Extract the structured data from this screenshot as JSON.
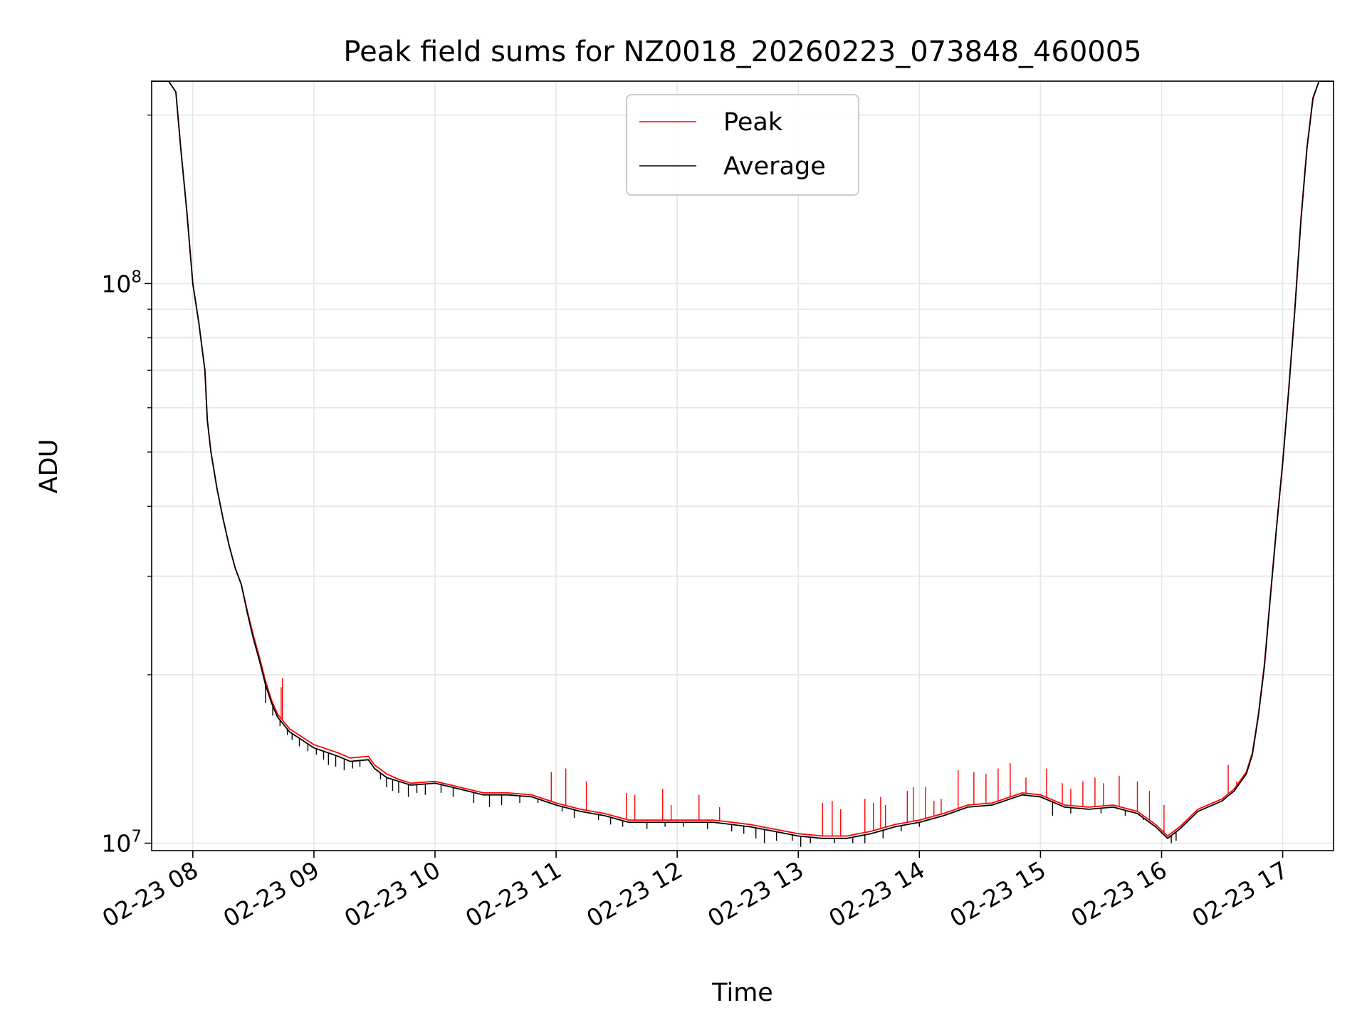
{
  "chart_data": {
    "type": "line",
    "title": "Peak field sums for NZ0018_20260223_073848_460005",
    "xlabel": "Time",
    "ylabel": "ADU",
    "yscale": "log",
    "ylim": [
      9700000,
      230000000
    ],
    "xlim": [
      7.66,
      17.42
    ],
    "x_units": "hours (02-23 HH)",
    "grid": true,
    "grid_color": "#e6e6e6",
    "legend_position": "upper center",
    "x_ticks": [
      {
        "value": 8,
        "label": "02-23 08"
      },
      {
        "value": 9,
        "label": "02-23 09"
      },
      {
        "value": 10,
        "label": "02-23 10"
      },
      {
        "value": 11,
        "label": "02-23 11"
      },
      {
        "value": 12,
        "label": "02-23 12"
      },
      {
        "value": 13,
        "label": "02-23 13"
      },
      {
        "value": 14,
        "label": "02-23 14"
      },
      {
        "value": 15,
        "label": "02-23 15"
      },
      {
        "value": 16,
        "label": "02-23 16"
      },
      {
        "value": 17,
        "label": "02-23 17"
      }
    ],
    "y_ticks_major": [
      {
        "value": 10000000,
        "base": "10",
        "exp": "7"
      },
      {
        "value": 100000000,
        "base": "10",
        "exp": "8"
      }
    ],
    "y_ticks_minor": [
      20000000,
      30000000,
      40000000,
      50000000,
      60000000,
      70000000,
      80000000,
      90000000,
      200000000
    ],
    "series": [
      {
        "name": "Peak",
        "color": "#ff0000",
        "x": [
          7.66,
          7.8,
          7.86,
          7.9,
          7.95,
          8.0,
          8.05,
          8.1,
          8.12,
          8.15,
          8.2,
          8.25,
          8.3,
          8.35,
          8.4,
          8.45,
          8.5,
          8.55,
          8.6,
          8.65,
          8.7,
          8.8,
          8.9,
          9.0,
          9.2,
          9.3,
          9.45,
          9.5,
          9.6,
          9.7,
          9.8,
          10.0,
          10.2,
          10.4,
          10.6,
          10.8,
          11.0,
          11.2,
          11.4,
          11.6,
          11.8,
          12.0,
          12.3,
          12.6,
          12.8,
          13.0,
          13.2,
          13.4,
          13.6,
          13.8,
          14.0,
          14.2,
          14.4,
          14.6,
          14.85,
          15.0,
          15.2,
          15.4,
          15.6,
          15.8,
          15.95,
          16.05,
          16.15,
          16.3,
          16.5,
          16.6,
          16.7,
          16.75,
          16.8,
          16.85,
          16.9,
          16.95,
          17.0,
          17.05,
          17.1,
          17.15,
          17.2,
          17.25,
          17.3,
          17.42
        ],
        "y": [
          230000000,
          230000000,
          220000000,
          175000000,
          135000000,
          100000000,
          85000000,
          70000000,
          57000000,
          50000000,
          43000000,
          38000000,
          34000000,
          31000000,
          29000000,
          26000000,
          23500000,
          21500000,
          19500000,
          18000000,
          17000000,
          16000000,
          15500000,
          15000000,
          14500000,
          14200000,
          14300000,
          13800000,
          13300000,
          13000000,
          12800000,
          12900000,
          12600000,
          12300000,
          12300000,
          12200000,
          11800000,
          11500000,
          11300000,
          11000000,
          11000000,
          11000000,
          11000000,
          10800000,
          10600000,
          10400000,
          10300000,
          10300000,
          10500000,
          10800000,
          11000000,
          11300000,
          11700000,
          11800000,
          12300000,
          12200000,
          11700000,
          11600000,
          11700000,
          11400000,
          10800000,
          10300000,
          10700000,
          11500000,
          12000000,
          12500000,
          13400000,
          14500000,
          17000000,
          21000000,
          28000000,
          37000000,
          48000000,
          65000000,
          90000000,
          130000000,
          175000000,
          215000000,
          230000000,
          230000000
        ],
        "spikes": [
          [
            10.96,
            13400000
          ],
          [
            11.08,
            13600000
          ],
          [
            11.25,
            12900000
          ],
          [
            11.58,
            12300000
          ],
          [
            11.65,
            12200000
          ],
          [
            11.88,
            12500000
          ],
          [
            11.95,
            11700000
          ],
          [
            12.18,
            12200000
          ],
          [
            12.35,
            11600000
          ],
          [
            13.2,
            11800000
          ],
          [
            13.28,
            11900000
          ],
          [
            13.35,
            11500000
          ],
          [
            13.55,
            12000000
          ],
          [
            13.62,
            11800000
          ],
          [
            13.68,
            12100000
          ],
          [
            13.72,
            11700000
          ],
          [
            13.9,
            12400000
          ],
          [
            13.95,
            12600000
          ],
          [
            14.05,
            12600000
          ],
          [
            14.12,
            11900000
          ],
          [
            14.18,
            12000000
          ],
          [
            14.32,
            13500000
          ],
          [
            14.45,
            13400000
          ],
          [
            14.55,
            13300000
          ],
          [
            14.65,
            13600000
          ],
          [
            14.75,
            13900000
          ],
          [
            14.88,
            13100000
          ],
          [
            15.05,
            13600000
          ],
          [
            15.18,
            12800000
          ],
          [
            15.25,
            12500000
          ],
          [
            15.35,
            12900000
          ],
          [
            15.45,
            13100000
          ],
          [
            15.52,
            12800000
          ],
          [
            15.65,
            13200000
          ],
          [
            15.8,
            12900000
          ],
          [
            15.9,
            12400000
          ],
          [
            16.02,
            11700000
          ],
          [
            16.55,
            13800000
          ],
          [
            16.62,
            12900000
          ],
          [
            8.74,
            19700000
          ],
          [
            8.52,
            22300000
          ],
          [
            8.73,
            19000000
          ]
        ]
      },
      {
        "name": "Average",
        "color": "#000000",
        "x": [
          7.66,
          7.8,
          7.86,
          7.9,
          7.95,
          8.0,
          8.05,
          8.1,
          8.12,
          8.15,
          8.2,
          8.25,
          8.3,
          8.35,
          8.4,
          8.45,
          8.5,
          8.55,
          8.6,
          8.65,
          8.7,
          8.8,
          8.9,
          9.0,
          9.2,
          9.3,
          9.45,
          9.5,
          9.6,
          9.7,
          9.8,
          10.0,
          10.2,
          10.4,
          10.6,
          10.8,
          11.0,
          11.2,
          11.4,
          11.6,
          11.8,
          12.0,
          12.3,
          12.6,
          12.8,
          13.0,
          13.2,
          13.4,
          13.6,
          13.8,
          14.0,
          14.2,
          14.4,
          14.6,
          14.85,
          15.0,
          15.2,
          15.4,
          15.6,
          15.8,
          15.95,
          16.05,
          16.15,
          16.3,
          16.5,
          16.6,
          16.7,
          16.75,
          16.8,
          16.85,
          16.9,
          16.95,
          17.0,
          17.05,
          17.1,
          17.15,
          17.2,
          17.25,
          17.3,
          17.42
        ],
        "y": [
          230000000,
          230000000,
          220000000,
          175000000,
          135000000,
          100000000,
          85000000,
          70000000,
          57000000,
          50000000,
          43000000,
          38000000,
          34000000,
          31000000,
          29000000,
          25800000,
          23200000,
          21200000,
          19200000,
          17800000,
          16800000,
          15800000,
          15300000,
          14800000,
          14300000,
          14000000,
          14100000,
          13600000,
          13100000,
          12900000,
          12700000,
          12800000,
          12500000,
          12200000,
          12200000,
          12100000,
          11700000,
          11400000,
          11200000,
          10900000,
          10900000,
          10900000,
          10900000,
          10700000,
          10500000,
          10300000,
          10200000,
          10200000,
          10400000,
          10700000,
          10900000,
          11200000,
          11600000,
          11700000,
          12200000,
          12100000,
          11600000,
          11500000,
          11600000,
          11300000,
          10700000,
          10200000,
          10600000,
          11400000,
          11900000,
          12400000,
          13300000,
          14400000,
          16900000,
          20800000,
          27800000,
          36800000,
          47800000,
          64500000,
          89500000,
          129000000,
          174000000,
          214000000,
          230000000,
          230000000
        ],
        "dips": [
          [
            8.6,
            17800000
          ],
          [
            8.66,
            16900000
          ],
          [
            8.72,
            16200000
          ],
          [
            8.78,
            15600000
          ],
          [
            8.82,
            15300000
          ],
          [
            8.88,
            14900000
          ],
          [
            8.95,
            14600000
          ],
          [
            9.02,
            14400000
          ],
          [
            9.08,
            14100000
          ],
          [
            9.12,
            13800000
          ],
          [
            9.18,
            13700000
          ],
          [
            9.25,
            13500000
          ],
          [
            9.32,
            13600000
          ],
          [
            9.38,
            13700000
          ],
          [
            9.55,
            13000000
          ],
          [
            9.6,
            12600000
          ],
          [
            9.65,
            12400000
          ],
          [
            9.7,
            12300000
          ],
          [
            9.78,
            12100000
          ],
          [
            9.85,
            12300000
          ],
          [
            9.92,
            12200000
          ],
          [
            10.05,
            12300000
          ],
          [
            10.15,
            12100000
          ],
          [
            10.32,
            11800000
          ],
          [
            10.45,
            11600000
          ],
          [
            10.55,
            11700000
          ],
          [
            10.7,
            11800000
          ],
          [
            10.85,
            11800000
          ],
          [
            11.05,
            11400000
          ],
          [
            11.15,
            11100000
          ],
          [
            11.35,
            11000000
          ],
          [
            11.45,
            10800000
          ],
          [
            11.55,
            10700000
          ],
          [
            11.75,
            10600000
          ],
          [
            11.9,
            10700000
          ],
          [
            12.05,
            10700000
          ],
          [
            12.25,
            10600000
          ],
          [
            12.45,
            10500000
          ],
          [
            12.55,
            10400000
          ],
          [
            12.65,
            10200000
          ],
          [
            12.72,
            10000000
          ],
          [
            12.82,
            10100000
          ],
          [
            12.95,
            10100000
          ],
          [
            13.02,
            9850000
          ],
          [
            13.1,
            10000000
          ],
          [
            13.3,
            10000000
          ],
          [
            13.45,
            10000000
          ],
          [
            13.55,
            10000000
          ],
          [
            13.7,
            10200000
          ],
          [
            13.85,
            10500000
          ],
          [
            14.0,
            10700000
          ],
          [
            15.1,
            11200000
          ],
          [
            15.25,
            11300000
          ],
          [
            15.5,
            11300000
          ],
          [
            15.7,
            11200000
          ],
          [
            15.85,
            11000000
          ],
          [
            16.0,
            10400000
          ],
          [
            16.08,
            10000000
          ],
          [
            16.12,
            10100000
          ]
        ]
      }
    ]
  }
}
